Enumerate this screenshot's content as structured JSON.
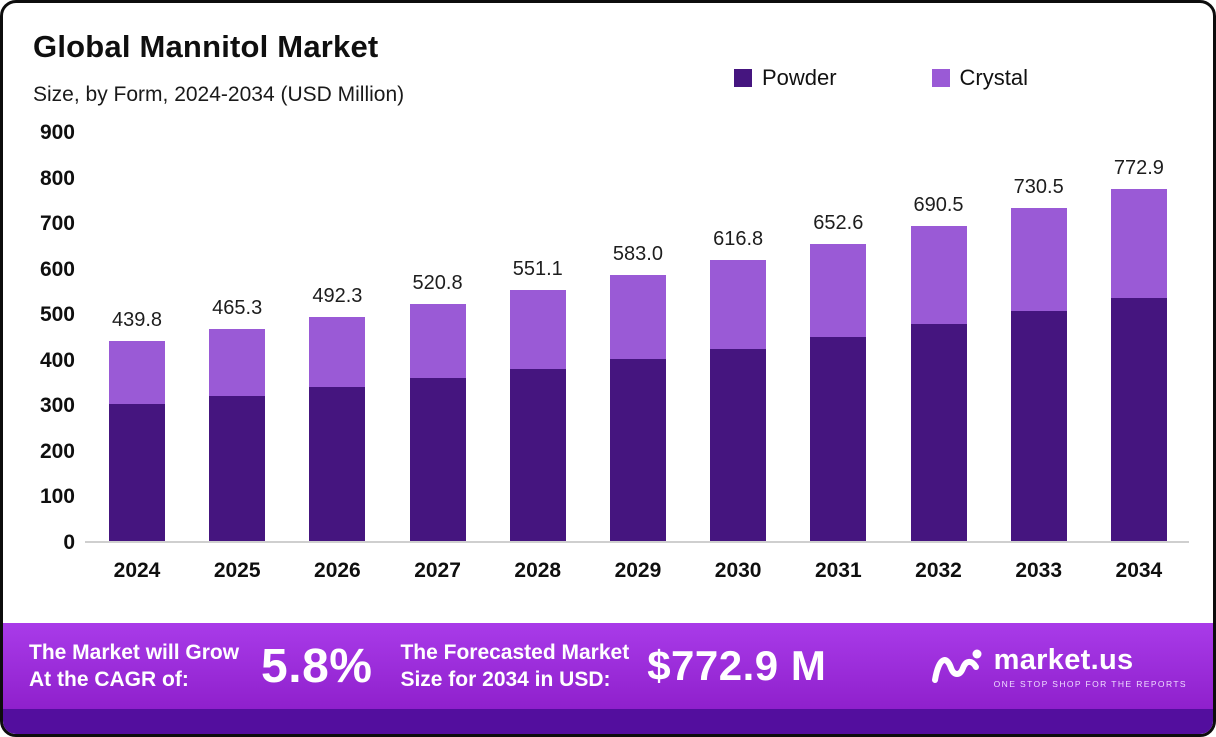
{
  "chart_data": {
    "type": "bar",
    "stacked": true,
    "title": "Global Mannitol Market",
    "subtitle": "Size, by Form, 2024-2034 (USD Million)",
    "categories": [
      "2024",
      "2025",
      "2026",
      "2027",
      "2028",
      "2029",
      "2030",
      "2031",
      "2032",
      "2033",
      "2034"
    ],
    "series": [
      {
        "name": "Powder",
        "color": "#45157F",
        "values": [
          300.0,
          318.0,
          338.0,
          357.0,
          378.0,
          400.0,
          421.0,
          448.0,
          476.0,
          504.0,
          533.0
        ]
      },
      {
        "name": "Crystal",
        "color": "#9A5AD6",
        "values": [
          139.8,
          147.3,
          154.3,
          163.8,
          173.1,
          183.0,
          195.8,
          204.6,
          214.5,
          226.5,
          239.9
        ]
      }
    ],
    "totals": [
      439.8,
      465.3,
      492.3,
      520.8,
      551.1,
      583.0,
      616.8,
      652.6,
      690.5,
      730.5,
      772.9
    ],
    "xlabel": "",
    "ylabel": "",
    "ylim": [
      0,
      900
    ],
    "yticks": [
      0,
      100,
      200,
      300,
      400,
      500,
      600,
      700,
      800,
      900
    ],
    "grid": false,
    "legend_position": "top"
  },
  "banner": {
    "left_line1": "The Market will Grow",
    "left_line2": "At the CAGR of:",
    "cagr": "5.8%",
    "mid_line1": "The Forecasted Market",
    "mid_line2": "Size for 2034 in USD:",
    "forecast_size": "$772.9 M",
    "brand": "market.us",
    "tagline": "One Stop Shop For The Reports"
  },
  "colors": {
    "banner_top": "#A93BE9",
    "banner_bottom": "#8F20CC",
    "footer_strip": "#530E9E",
    "axis_line": "#CFCFCF"
  }
}
